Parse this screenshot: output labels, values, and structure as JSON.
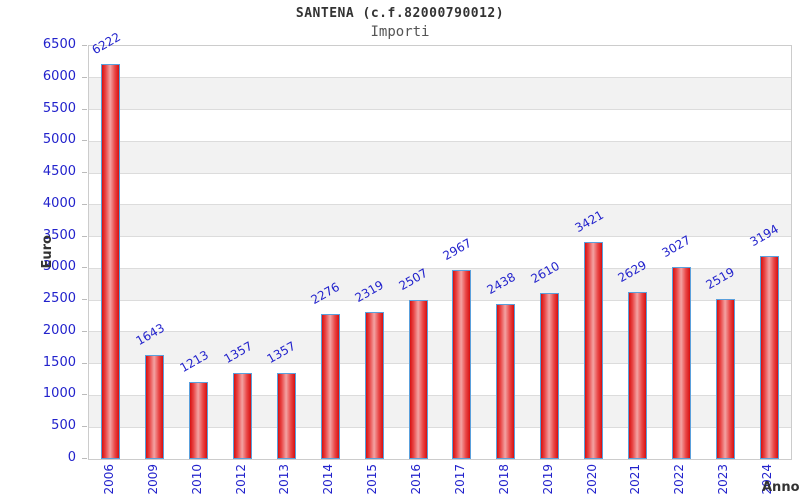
{
  "header": {
    "title": "SANTENA (c.f.82000790012)",
    "subtitle": "Importi"
  },
  "chart_data": {
    "type": "bar",
    "title": "SANTENA (c.f.82000790012)",
    "subtitle": "Importi",
    "xlabel": "Anno",
    "ylabel": "Euro",
    "categories": [
      "2006",
      "2009",
      "2010",
      "2012",
      "2013",
      "2014",
      "2015",
      "2016",
      "2017",
      "2018",
      "2019",
      "2020",
      "2021",
      "2022",
      "2023",
      "2024"
    ],
    "values": [
      6222,
      1643,
      1213,
      1357,
      1357,
      2276,
      2319,
      2507,
      2967,
      2438,
      2610,
      3421,
      2629,
      3027,
      2519,
      3194
    ],
    "ylim": [
      0,
      6500
    ],
    "ytick_step": 500,
    "grid": true,
    "legend": "none",
    "colors": {
      "label_blue": "#2222cc",
      "bar_edge": "#d81010",
      "bar_center": "#f3a3a3",
      "bar_border": "#5aa0dc",
      "band_gray": "#f2f2f2",
      "band_white": "#ffffff",
      "grid_line": "#dcdcdc",
      "plot_frame": "#cccccc",
      "title_color": "#333333",
      "subtitle_color": "#555555"
    }
  }
}
